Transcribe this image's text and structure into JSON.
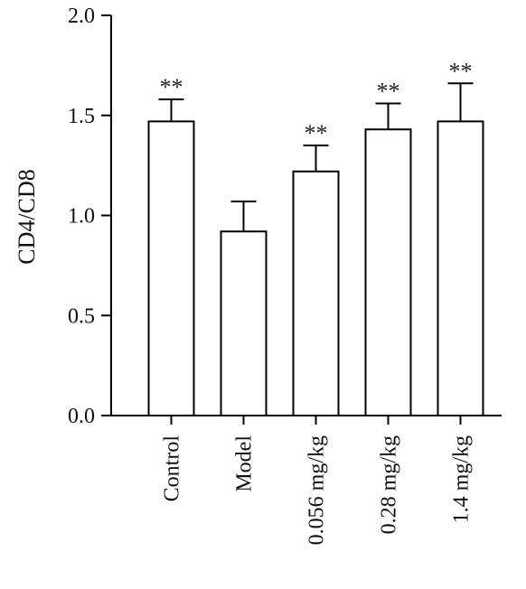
{
  "chart_data": {
    "type": "bar",
    "title": "",
    "xlabel": "",
    "ylabel": "CD4/CD8",
    "ylim": [
      0,
      2.0
    ],
    "yticks": [
      0.0,
      0.5,
      1.0,
      1.5,
      2.0
    ],
    "ytick_labels": [
      "0.0",
      "0.5",
      "1.0",
      "1.5",
      "2.0"
    ],
    "categories": [
      "Control",
      "Model",
      "0.056 mg/kg",
      "0.28 mg/kg",
      "1.4 mg/kg"
    ],
    "values": [
      1.47,
      0.92,
      1.22,
      1.43,
      1.47
    ],
    "error_upper": [
      0.11,
      0.15,
      0.13,
      0.13,
      0.19
    ],
    "significance": [
      "**",
      "",
      "**",
      "**",
      "**"
    ],
    "grid": false,
    "bar_fill": "#ffffff",
    "bar_stroke": "#000000"
  }
}
